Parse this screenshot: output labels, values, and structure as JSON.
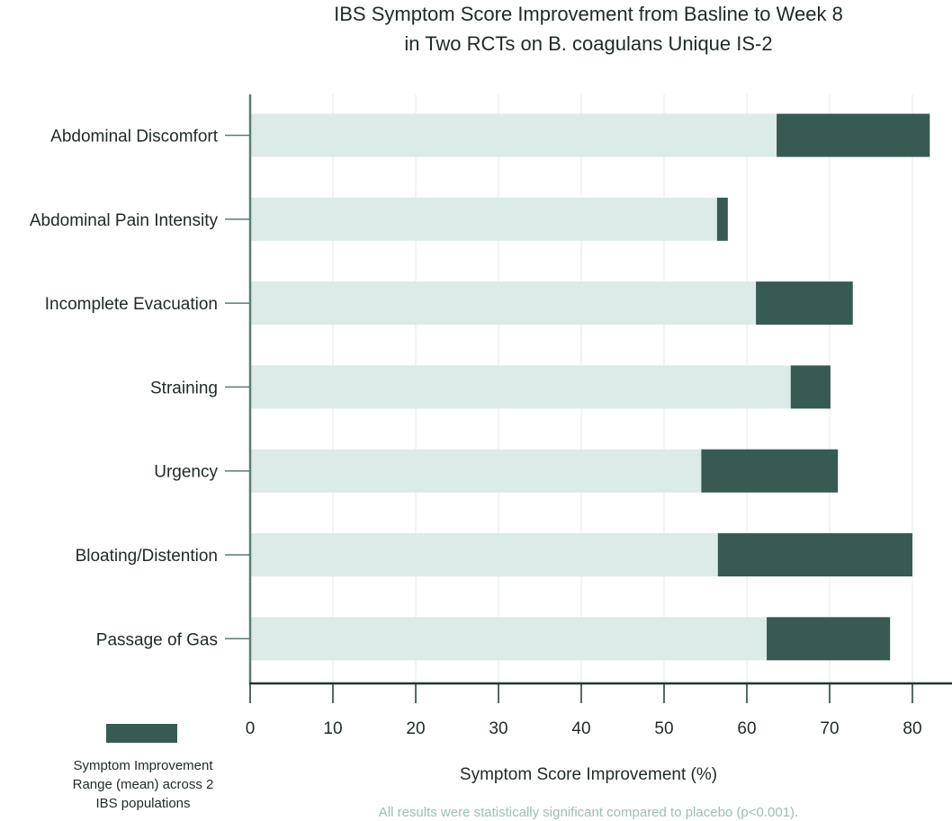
{
  "chart_data": {
    "type": "bar",
    "orientation": "horizontal",
    "stacked": true,
    "title": [
      "IBS Symptom Score Improvement from Basline to Week 8",
      "in Two RCTs on B. coagulans Unique IS-2"
    ],
    "xlabel": "Symptom Score Improvement (%)",
    "ylabel": "",
    "xlim": [
      0,
      87
    ],
    "xticks": [
      0,
      10,
      20,
      30,
      40,
      50,
      60,
      70,
      80
    ],
    "grid": true,
    "categories": [
      "Abdominal Discomfort",
      "Abdominal Pain Intensity",
      "Incomplete Evacuation",
      "Straining",
      "Urgency",
      "Bloating/Distention",
      "Passage of Gas"
    ],
    "range_low": [
      63.6,
      56.4,
      61.1,
      65.3,
      54.5,
      56.5,
      62.4
    ],
    "range_high": [
      82.1,
      57.7,
      72.8,
      70.1,
      71.0,
      80.0,
      77.3
    ],
    "colors": {
      "base": "#dbebe8",
      "range": "#375a52",
      "axis": "#5e7a74",
      "grid": "#e3e8e7"
    },
    "legend": {
      "label": [
        "Symptom Improvement",
        "Range (mean) across 2",
        "IBS populations"
      ],
      "placement": "bottom-left"
    },
    "footnote": "All results were statistically significant compared to placebo (p<0.001)."
  }
}
